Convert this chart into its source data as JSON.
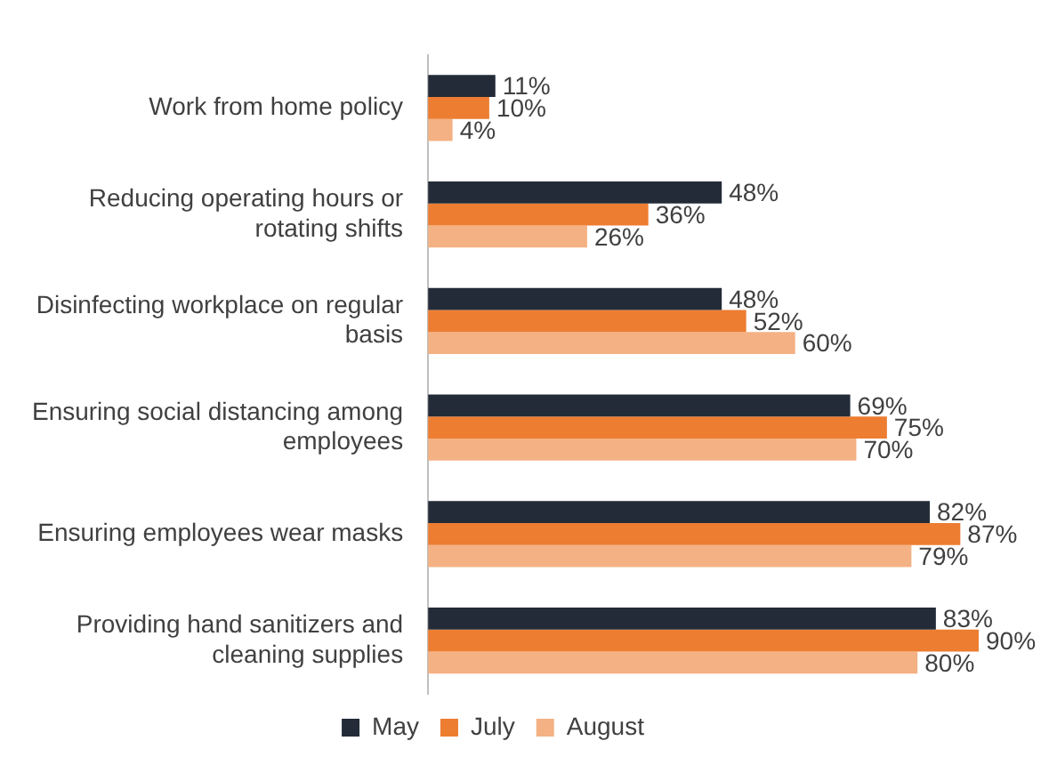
{
  "chart_data": {
    "type": "bar",
    "orientation": "horizontal",
    "legend": "bottom",
    "categories": [
      "Work from home policy",
      "Reducing operating hours or rotating shifts",
      "Disinfecting workplace on regular basis",
      "Ensuring social distancing among employees",
      "Ensuring employees wear masks",
      "Providing hand sanitizers and cleaning supplies"
    ],
    "series": [
      {
        "name": "May",
        "color": "#232b38",
        "values": [
          11,
          48,
          48,
          69,
          82,
          83
        ],
        "value_labels": [
          "11%",
          "48%",
          "48%",
          "69%",
          "82%",
          "83%"
        ]
      },
      {
        "name": "July",
        "color": "#ed7d31",
        "values": [
          10,
          36,
          52,
          75,
          87,
          90
        ],
        "value_labels": [
          "10%",
          "36%",
          "52%",
          "75%",
          "87%",
          "90%"
        ]
      },
      {
        "name": "August",
        "color": "#f4b183",
        "values": [
          4,
          26,
          60,
          70,
          79,
          80
        ],
        "value_labels": [
          "4%",
          "26%",
          "60%",
          "70%",
          "79%",
          "80%"
        ]
      }
    ]
  }
}
